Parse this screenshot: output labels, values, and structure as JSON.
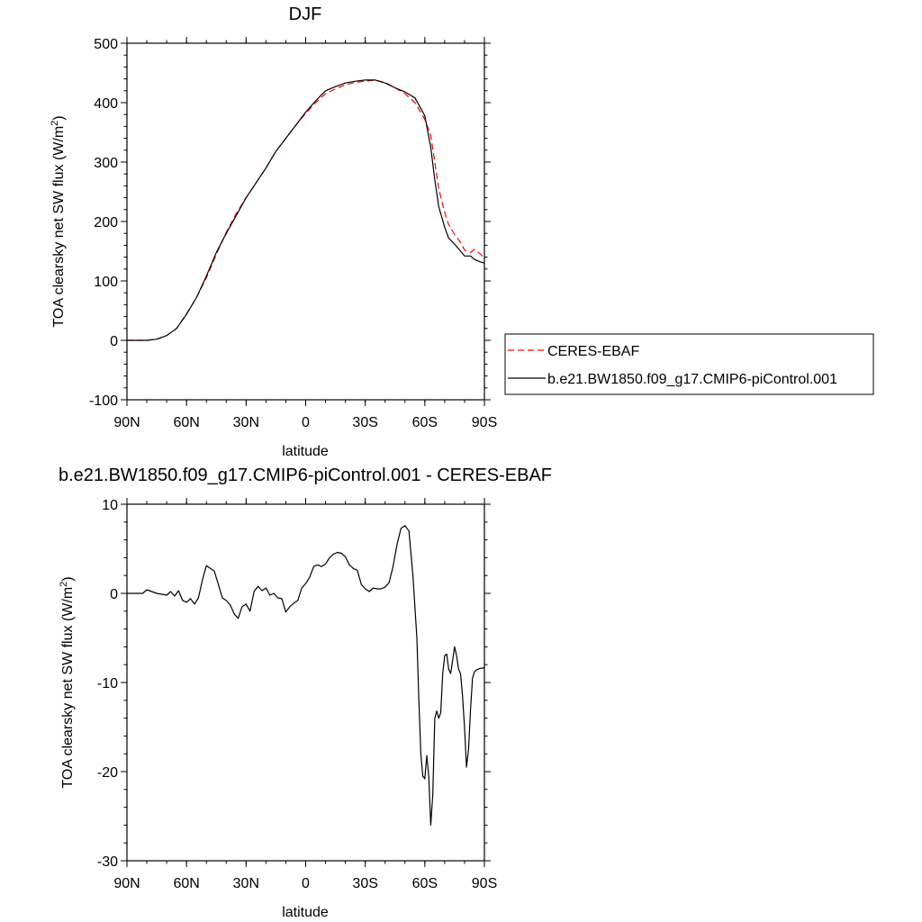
{
  "chart_data": [
    {
      "type": "line",
      "title": "DJF",
      "xlabel": "latitude",
      "ylabel_main": "TOA clearsky net SW flux (W/m",
      "ylabel_sup": "2",
      "ylabel_close": ")",
      "xlim": [
        -90,
        90
      ],
      "ylim": [
        -100,
        500
      ],
      "yticks": [
        -100,
        0,
        100,
        200,
        300,
        400,
        500
      ],
      "xticks": [
        {
          "value": -90,
          "label": "90N"
        },
        {
          "value": -60,
          "label": "60N"
        },
        {
          "value": -30,
          "label": "30N"
        },
        {
          "value": 0,
          "label": "0"
        },
        {
          "value": 30,
          "label": "30S"
        },
        {
          "value": 60,
          "label": "60S"
        },
        {
          "value": 90,
          "label": "90S"
        }
      ],
      "legend": {
        "placement": "right",
        "entries": [
          {
            "label": "CERES-EBAF",
            "color": "#ff0000",
            "dash": true
          },
          {
            "label": "b.e21.BW1850.f09_g17.CMIP6-piControl.001",
            "color": "#000000",
            "dash": false
          }
        ]
      },
      "series": [
        {
          "name": "CERES-EBAF",
          "color": "#ff0000",
          "dash": true,
          "x": [
            -90,
            -85,
            -80,
            -75,
            -70,
            -65,
            -60,
            -55,
            -50,
            -45,
            -40,
            -35,
            -30,
            -25,
            -20,
            -15,
            -10,
            -5,
            0,
            5,
            10,
            15,
            20,
            25,
            30,
            35,
            40,
            45,
            50,
            55,
            60,
            63,
            65,
            67,
            70,
            72,
            75,
            78,
            80,
            83,
            85,
            88,
            90
          ],
          "y": [
            0,
            0,
            0,
            2,
            8,
            20,
            45,
            72,
            105,
            145,
            182,
            213,
            240,
            265,
            290,
            318,
            340,
            362,
            382,
            400,
            415,
            423,
            430,
            434,
            436,
            438,
            434,
            425,
            415,
            400,
            372,
            345,
            300,
            255,
            215,
            195,
            178,
            165,
            152,
            148,
            153,
            145,
            138
          ]
        },
        {
          "name": "b.e21.BW1850.f09_g17.CMIP6-piControl.001",
          "color": "#000000",
          "dash": false,
          "x": [
            -90,
            -85,
            -80,
            -75,
            -70,
            -65,
            -60,
            -55,
            -50,
            -45,
            -40,
            -35,
            -30,
            -25,
            -20,
            -15,
            -10,
            -5,
            0,
            5,
            10,
            15,
            20,
            25,
            30,
            35,
            40,
            45,
            50,
            55,
            60,
            63,
            65,
            67,
            70,
            72,
            75,
            78,
            80,
            83,
            85,
            88,
            90
          ],
          "y": [
            0,
            0,
            0,
            2,
            8,
            20,
            44,
            72,
            108,
            148,
            180,
            210,
            240,
            265,
            290,
            318,
            340,
            362,
            384,
            403,
            420,
            427,
            433,
            436,
            438,
            438,
            433,
            425,
            418,
            408,
            378,
            325,
            270,
            225,
            190,
            172,
            162,
            150,
            142,
            142,
            136,
            132,
            130
          ]
        }
      ]
    },
    {
      "type": "line",
      "title": "b.e21.BW1850.f09_g17.CMIP6-piControl.001 - CERES-EBAF",
      "xlabel": "latitude",
      "ylabel_main": "TOA clearsky net SW flux (W/m",
      "ylabel_sup": "2",
      "ylabel_close": ")",
      "xlim": [
        -90,
        90
      ],
      "ylim": [
        -30,
        10
      ],
      "yticks": [
        -30,
        -20,
        -10,
        0,
        10
      ],
      "xticks": [
        {
          "value": -90,
          "label": "90N"
        },
        {
          "value": -60,
          "label": "60N"
        },
        {
          "value": -30,
          "label": "30N"
        },
        {
          "value": 0,
          "label": "0"
        },
        {
          "value": 30,
          "label": "30S"
        },
        {
          "value": 60,
          "label": "60S"
        },
        {
          "value": 90,
          "label": "90S"
        }
      ],
      "series": [
        {
          "color": "#000000",
          "dash": false,
          "x": [
            -90,
            -82,
            -80,
            -75,
            -70,
            -68,
            -66,
            -64,
            -62,
            -60,
            -58,
            -56,
            -54,
            -52,
            -50,
            -48,
            -46,
            -44,
            -42,
            -40,
            -38,
            -36,
            -34,
            -32,
            -30,
            -28,
            -26,
            -24,
            -22,
            -20,
            -18,
            -16,
            -14,
            -12,
            -10,
            -8,
            -6,
            -4,
            -2,
            0,
            2,
            4,
            6,
            8,
            10,
            12,
            14,
            16,
            18,
            20,
            22,
            24,
            26,
            28,
            30,
            32,
            34,
            36,
            38,
            40,
            42,
            44,
            46,
            48,
            50,
            52,
            54,
            56,
            57,
            58,
            59,
            60,
            61,
            62,
            63,
            64,
            65,
            66,
            67,
            68,
            69,
            70,
            71,
            72,
            73,
            74,
            75,
            76,
            77,
            78,
            79,
            80,
            81,
            82,
            83,
            84,
            85,
            86,
            87,
            88,
            89,
            90
          ],
          "y": [
            0,
            0,
            0.4,
            0,
            -0.2,
            0.2,
            -0.3,
            0.3,
            -0.8,
            -1,
            -0.6,
            -1.2,
            -0.5,
            1.5,
            3.1,
            2.8,
            2.5,
            1,
            -0.5,
            -0.8,
            -1.3,
            -2.3,
            -2.8,
            -1.5,
            -1.2,
            -2,
            0.2,
            0.8,
            0.3,
            0.6,
            -0.2,
            0,
            -0.5,
            -0.6,
            -2.1,
            -1.5,
            -1.1,
            -0.8,
            0.6,
            1.1,
            1.8,
            3,
            3.2,
            3,
            3.3,
            4,
            4.4,
            4.6,
            4.5,
            4.1,
            3.2,
            2.8,
            2.6,
            1,
            0.5,
            0.2,
            0.6,
            0.5,
            0.5,
            0.7,
            1.2,
            3,
            5.5,
            7.3,
            7.6,
            7,
            2,
            -5,
            -12,
            -18,
            -20.5,
            -20.8,
            -18.2,
            -20.5,
            -26,
            -22.5,
            -14,
            -13.2,
            -14,
            -13.4,
            -9,
            -7,
            -6.8,
            -8.5,
            -9,
            -7.5,
            -6,
            -7,
            -8.5,
            -9,
            -11.5,
            -15,
            -19.5,
            -17.5,
            -13,
            -9.5,
            -8.8,
            -8.6,
            -8.5,
            -8.4,
            -8.4,
            -8.3
          ]
        }
      ]
    }
  ]
}
